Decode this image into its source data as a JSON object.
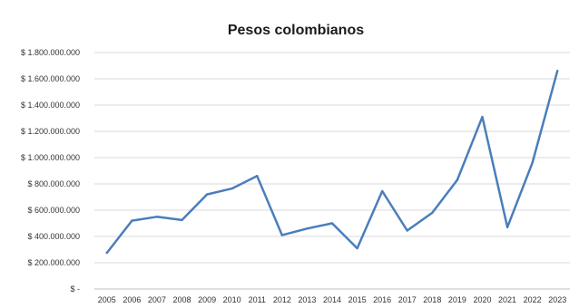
{
  "chart_data": {
    "type": "line",
    "title": "Pesos colombianos",
    "xlabel": "",
    "ylabel": "",
    "categories": [
      "2005",
      "2006",
      "2007",
      "2008",
      "2009",
      "2010",
      "2011",
      "2012",
      "2013",
      "2014",
      "2015",
      "2016",
      "2017",
      "2018",
      "2019",
      "2020",
      "2021",
      "2022",
      "2023"
    ],
    "series": [
      {
        "values": [
          275000000,
          520000000,
          550000000,
          525000000,
          720000000,
          765000000,
          860000000,
          410000000,
          460000000,
          500000000,
          310000000,
          745000000,
          445000000,
          580000000,
          830000000,
          1310000000,
          470000000,
          960000000,
          1660000000
        ],
        "color": "#4a7ebb"
      }
    ],
    "ylim": [
      0,
      1800000000
    ],
    "yticks": [
      0,
      200000000,
      400000000,
      600000000,
      800000000,
      1000000000,
      1200000000,
      1400000000,
      1600000000,
      1800000000
    ],
    "ytick_labels": [
      "$ -",
      "$ 200.000.000",
      "$ 400.000.000",
      "$ 600.000.000",
      "$ 800.000.000",
      "$ 1.000.000.000",
      "$ 1.200.000.000",
      "$ 1.400.000.000",
      "$ 1.600.000.000",
      "$ 1.800.000.000"
    ],
    "grid": true,
    "legend": "none"
  }
}
